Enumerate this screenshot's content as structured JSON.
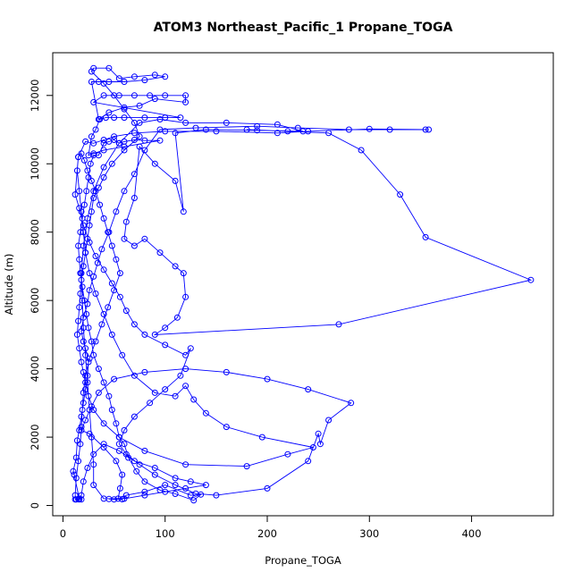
{
  "chart_data": {
    "type": "scatter",
    "title": "ATOM3 Northeast_Pacific_1 Propane_TOGA",
    "xlabel": "Propane_TOGA",
    "ylabel": "Altitude (m)",
    "xlim": [
      -10,
      480
    ],
    "ylim": [
      -300,
      13250
    ],
    "x_ticks": [
      0,
      100,
      200,
      300,
      400
    ],
    "y_ticks": [
      0,
      2000,
      4000,
      6000,
      8000,
      10000,
      12000
    ],
    "grid": false,
    "color": "#0000ff",
    "series": [
      {
        "values": [
          [
            12,
            180
          ],
          [
            15,
            185
          ],
          [
            18,
            180
          ],
          [
            16,
            200
          ],
          [
            11,
            900
          ],
          [
            10,
            1000
          ],
          [
            13,
            1400
          ],
          [
            14,
            1900
          ],
          [
            16,
            2200
          ],
          [
            18,
            2600
          ],
          [
            20,
            3000
          ],
          [
            22,
            3400
          ],
          [
            24,
            3800
          ],
          [
            25,
            4200
          ],
          [
            22,
            4600
          ],
          [
            20,
            4800
          ],
          [
            18,
            5100
          ],
          [
            20,
            5500
          ],
          [
            24,
            5900
          ],
          [
            26,
            6300
          ],
          [
            30,
            6700
          ],
          [
            34,
            7100
          ],
          [
            38,
            7500
          ],
          [
            45,
            8000
          ],
          [
            52,
            8600
          ],
          [
            60,
            9200
          ],
          [
            70,
            9700
          ],
          [
            80,
            10400
          ],
          [
            95,
            11000
          ],
          [
            130,
            11050
          ],
          [
            190,
            11100
          ],
          [
            230,
            11050
          ],
          [
            280,
            11000
          ],
          [
            320,
            11000
          ],
          [
            358,
            11000
          ],
          [
            355,
            11000
          ],
          [
            300,
            11020
          ],
          [
            240,
            10950
          ],
          [
            210,
            10900
          ],
          [
            150,
            10950
          ],
          [
            100,
            10950
          ],
          [
            70,
            10900
          ],
          [
            50,
            10800
          ],
          [
            40,
            10700
          ],
          [
            30,
            10600
          ],
          [
            22,
            10650
          ],
          [
            15,
            10200
          ],
          [
            12,
            9100
          ],
          [
            16,
            8700
          ],
          [
            20,
            8200
          ],
          [
            26,
            7700
          ],
          [
            32,
            7300
          ],
          [
            40,
            6900
          ],
          [
            48,
            6500
          ],
          [
            56,
            6100
          ],
          [
            62,
            5700
          ],
          [
            70,
            5300
          ],
          [
            80,
            5000
          ],
          [
            100,
            4700
          ],
          [
            120,
            4400
          ],
          [
            125,
            4600
          ],
          [
            115,
            3800
          ],
          [
            100,
            3400
          ],
          [
            85,
            3000
          ],
          [
            70,
            2600
          ],
          [
            60,
            2200
          ],
          [
            55,
            1800
          ],
          [
            62,
            1500
          ],
          [
            75,
            1200
          ],
          [
            90,
            900
          ],
          [
            110,
            600
          ],
          [
            130,
            350
          ],
          [
            150,
            300
          ],
          [
            200,
            500
          ],
          [
            240,
            1300
          ],
          [
            250,
            2100
          ],
          [
            252,
            1800
          ],
          [
            260,
            2500
          ],
          [
            282,
            3000
          ],
          [
            240,
            3400
          ],
          [
            200,
            3700
          ],
          [
            160,
            3900
          ],
          [
            120,
            4000
          ],
          [
            80,
            3900
          ],
          [
            50,
            3700
          ],
          [
            35,
            3300
          ],
          [
            28,
            2900
          ],
          [
            22,
            2500
          ],
          [
            18,
            2200
          ],
          [
            26,
            2100
          ],
          [
            40,
            1700
          ],
          [
            52,
            1300
          ],
          [
            58,
            900
          ],
          [
            56,
            500
          ],
          [
            54,
            200
          ],
          [
            45,
            190
          ],
          [
            50,
            180
          ],
          [
            58,
            185
          ],
          [
            62,
            300
          ],
          [
            80,
            400
          ],
          [
            100,
            600
          ],
          [
            125,
            300
          ],
          [
            135,
            320
          ],
          [
            128,
            150
          ],
          [
            110,
            340
          ],
          [
            95,
            450
          ],
          [
            80,
            700
          ],
          [
            72,
            1000
          ],
          [
            64,
            1400
          ],
          [
            60,
            1800
          ],
          [
            55,
            2000
          ],
          [
            52,
            2400
          ],
          [
            48,
            2800
          ],
          [
            45,
            3200
          ],
          [
            40,
            3600
          ],
          [
            35,
            4000
          ],
          [
            30,
            4400
          ],
          [
            28,
            4800
          ],
          [
            25,
            5200
          ],
          [
            23,
            5600
          ],
          [
            21,
            6000
          ],
          [
            19,
            6400
          ],
          [
            17,
            6800
          ],
          [
            16,
            7200
          ],
          [
            15,
            7600
          ],
          [
            17,
            8000
          ],
          [
            19,
            8400
          ],
          [
            21,
            8800
          ],
          [
            23,
            9200
          ],
          [
            25,
            9600
          ],
          [
            27,
            10000
          ],
          [
            30,
            10250
          ],
          [
            35,
            10250
          ],
          [
            40,
            10600
          ],
          [
            45,
            10650
          ],
          [
            50,
            10700
          ],
          [
            55,
            10600
          ],
          [
            60,
            10650
          ],
          [
            70,
            10700
          ],
          [
            80,
            10680
          ],
          [
            95,
            10680
          ],
          [
            60,
            10500
          ],
          [
            40,
            10400
          ],
          [
            30,
            10300
          ],
          [
            25,
            10250
          ],
          [
            28,
            10800
          ],
          [
            32,
            11000
          ],
          [
            36,
            11300
          ],
          [
            42,
            11350
          ],
          [
            50,
            11350
          ],
          [
            60,
            11350
          ],
          [
            80,
            11350
          ],
          [
            100,
            11350
          ],
          [
            115,
            11350
          ],
          [
            30,
            11800
          ],
          [
            40,
            12000
          ],
          [
            55,
            12000
          ],
          [
            70,
            12000
          ],
          [
            85,
            12000
          ],
          [
            100,
            12000
          ],
          [
            120,
            12000
          ],
          [
            120,
            11800
          ],
          [
            90,
            11900
          ],
          [
            75,
            11700
          ],
          [
            60,
            11650
          ],
          [
            45,
            11500
          ],
          [
            35,
            11300
          ],
          [
            28,
            12400
          ],
          [
            35,
            12400
          ],
          [
            45,
            12400
          ],
          [
            60,
            12400
          ],
          [
            80,
            12450
          ],
          [
            100,
            12550
          ],
          [
            90,
            12600
          ],
          [
            70,
            12550
          ],
          [
            55,
            12500
          ],
          [
            45,
            12800
          ],
          [
            30,
            12800
          ],
          [
            28,
            12700
          ],
          [
            40,
            12350
          ],
          [
            50,
            12000
          ],
          [
            60,
            11600
          ],
          [
            70,
            11200
          ],
          [
            75,
            10800
          ],
          [
            60,
            10400
          ],
          [
            48,
            10000
          ],
          [
            40,
            9600
          ],
          [
            35,
            9300
          ],
          [
            30,
            9000
          ],
          [
            28,
            8600
          ],
          [
            26,
            8200
          ],
          [
            24,
            7800
          ],
          [
            22,
            7400
          ],
          [
            20,
            7000
          ],
          [
            18,
            6600
          ],
          [
            17,
            6200
          ],
          [
            16,
            5800
          ],
          [
            15,
            5400
          ],
          [
            14,
            5000
          ],
          [
            16,
            4600
          ],
          [
            18,
            4200
          ],
          [
            20,
            3900
          ],
          [
            22,
            3600
          ],
          [
            25,
            3200
          ],
          [
            30,
            2800
          ],
          [
            40,
            2400
          ],
          [
            55,
            2000
          ],
          [
            80,
            1600
          ],
          [
            120,
            1200
          ],
          [
            180,
            1150
          ],
          [
            220,
            1500
          ],
          [
            245,
            1700
          ],
          [
            195,
            2000
          ],
          [
            160,
            2300
          ],
          [
            140,
            2700
          ],
          [
            128,
            3100
          ],
          [
            120,
            3500
          ],
          [
            110,
            3200
          ],
          [
            90,
            3300
          ],
          [
            70,
            3800
          ],
          [
            58,
            4400
          ],
          [
            48,
            5000
          ],
          [
            40,
            5600
          ],
          [
            32,
            6200
          ],
          [
            26,
            6800
          ],
          [
            22,
            7400
          ],
          [
            20,
            8000
          ],
          [
            18,
            8600
          ],
          [
            16,
            9200
          ],
          [
            14,
            9800
          ],
          [
            15,
            10200
          ],
          [
            18,
            10300
          ],
          [
            21,
            10100
          ],
          [
            24,
            9800
          ],
          [
            28,
            9500
          ],
          [
            32,
            9200
          ],
          [
            36,
            8800
          ],
          [
            40,
            8400
          ],
          [
            44,
            8000
          ],
          [
            48,
            7600
          ],
          [
            52,
            7200
          ],
          [
            56,
            6800
          ],
          [
            50,
            6300
          ],
          [
            44,
            5800
          ],
          [
            38,
            5300
          ],
          [
            32,
            4800
          ],
          [
            26,
            4300
          ],
          [
            22,
            3800
          ],
          [
            20,
            3300
          ],
          [
            19,
            2800
          ],
          [
            18,
            2300
          ],
          [
            17,
            1800
          ],
          [
            15,
            1300
          ],
          [
            13,
            800
          ],
          [
            12,
            300
          ],
          [
            13,
            180
          ],
          [
            16,
            180
          ],
          [
            18,
            300
          ],
          [
            20,
            700
          ],
          [
            24,
            1100
          ],
          [
            30,
            1500
          ],
          [
            40,
            1800
          ],
          [
            55,
            1600
          ],
          [
            70,
            1300
          ],
          [
            90,
            1100
          ],
          [
            110,
            800
          ],
          [
            125,
            700
          ],
          [
            140,
            600
          ],
          [
            120,
            500
          ],
          [
            100,
            400
          ],
          [
            80,
            300
          ],
          [
            60,
            200
          ],
          [
            40,
            200
          ],
          [
            30,
            600
          ],
          [
            30,
            1200
          ],
          [
            28,
            2000
          ],
          [
            26,
            2800
          ],
          [
            24,
            3600
          ],
          [
            22,
            4400
          ],
          [
            20,
            5200
          ],
          [
            19,
            6000
          ],
          [
            18,
            6800
          ],
          [
            20,
            7600
          ],
          [
            24,
            8400
          ],
          [
            30,
            9200
          ],
          [
            40,
            9900
          ],
          [
            55,
            10600
          ],
          [
            75,
            11200
          ],
          [
            95,
            11300
          ],
          [
            120,
            11200
          ],
          [
            160,
            11200
          ],
          [
            210,
            11150
          ],
          [
            235,
            10950
          ],
          [
            190,
            10980
          ],
          [
            140,
            11000
          ],
          [
            110,
            10900
          ],
          [
            118,
            8600
          ],
          [
            110,
            9500
          ],
          [
            90,
            10000
          ],
          [
            75,
            10500
          ],
          [
            70,
            9000
          ],
          [
            62,
            8300
          ],
          [
            60,
            7800
          ],
          [
            70,
            7600
          ],
          [
            80,
            7800
          ],
          [
            95,
            7400
          ],
          [
            110,
            7000
          ],
          [
            118,
            6800
          ],
          [
            120,
            6100
          ],
          [
            112,
            5500
          ],
          [
            100,
            5200
          ],
          [
            90,
            5000
          ],
          [
            270,
            5300
          ],
          [
            458,
            6600
          ],
          [
            355,
            7850
          ],
          [
            330,
            9100
          ],
          [
            292,
            10400
          ],
          [
            260,
            10900
          ],
          [
            220,
            10950
          ],
          [
            180,
            11000
          ]
        ]
      }
    ]
  }
}
